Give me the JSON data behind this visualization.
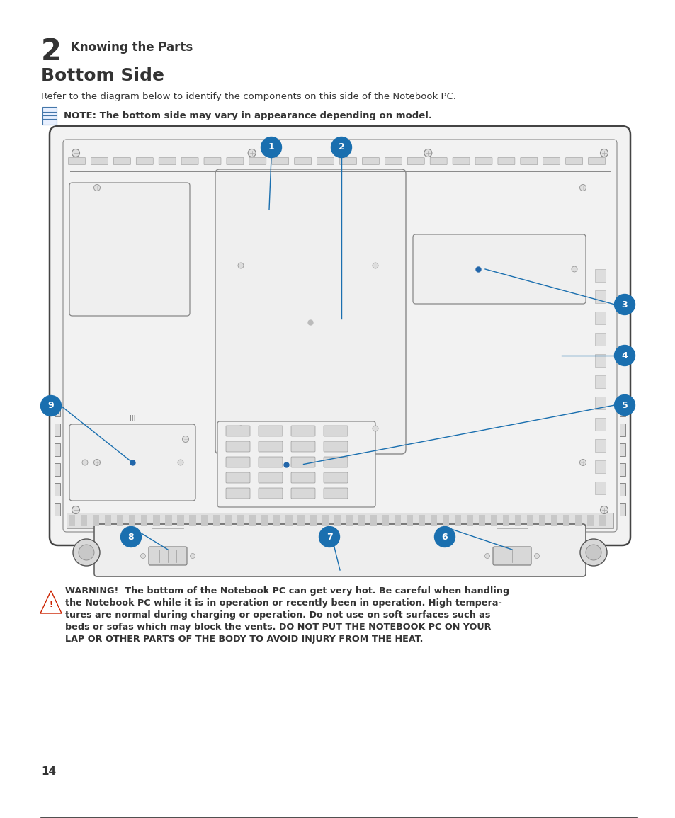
{
  "bg_color": "#ffffff",
  "chapter_num": "2",
  "chapter_title": "Knowing the Parts",
  "section_title": "Bottom Side",
  "section_desc": "Refer to the diagram below to identify the components on this side of the Notebook PC.",
  "note_text": "NOTE: The bottom side may vary in appearance depending on model.",
  "warning_line1": "WARNING!  The bottom of the Notebook PC can get very hot. Be careful when handling",
  "warning_line2": "the Notebook PC while it is in operation or recently been in operation. High tempera-",
  "warning_line3": "tures are normal during charging or operation. Do not use on soft surfaces such as",
  "warning_line4": "beds or sofas which may block the vents. DO NOT PUT THE NOTEBOOK PC ON YOUR",
  "warning_line5": "LAP OR OTHER PARTS OF THE BODY TO AVOID INJURY FROM THE HEAT.",
  "page_num": "14",
  "blue": "#1a6faf",
  "dark": "#333333",
  "med": "#666666",
  "light": "#aaaaaa",
  "lighter": "#cccccc",
  "lightest": "#eeeeee",
  "near_white": "#f8f8f8"
}
